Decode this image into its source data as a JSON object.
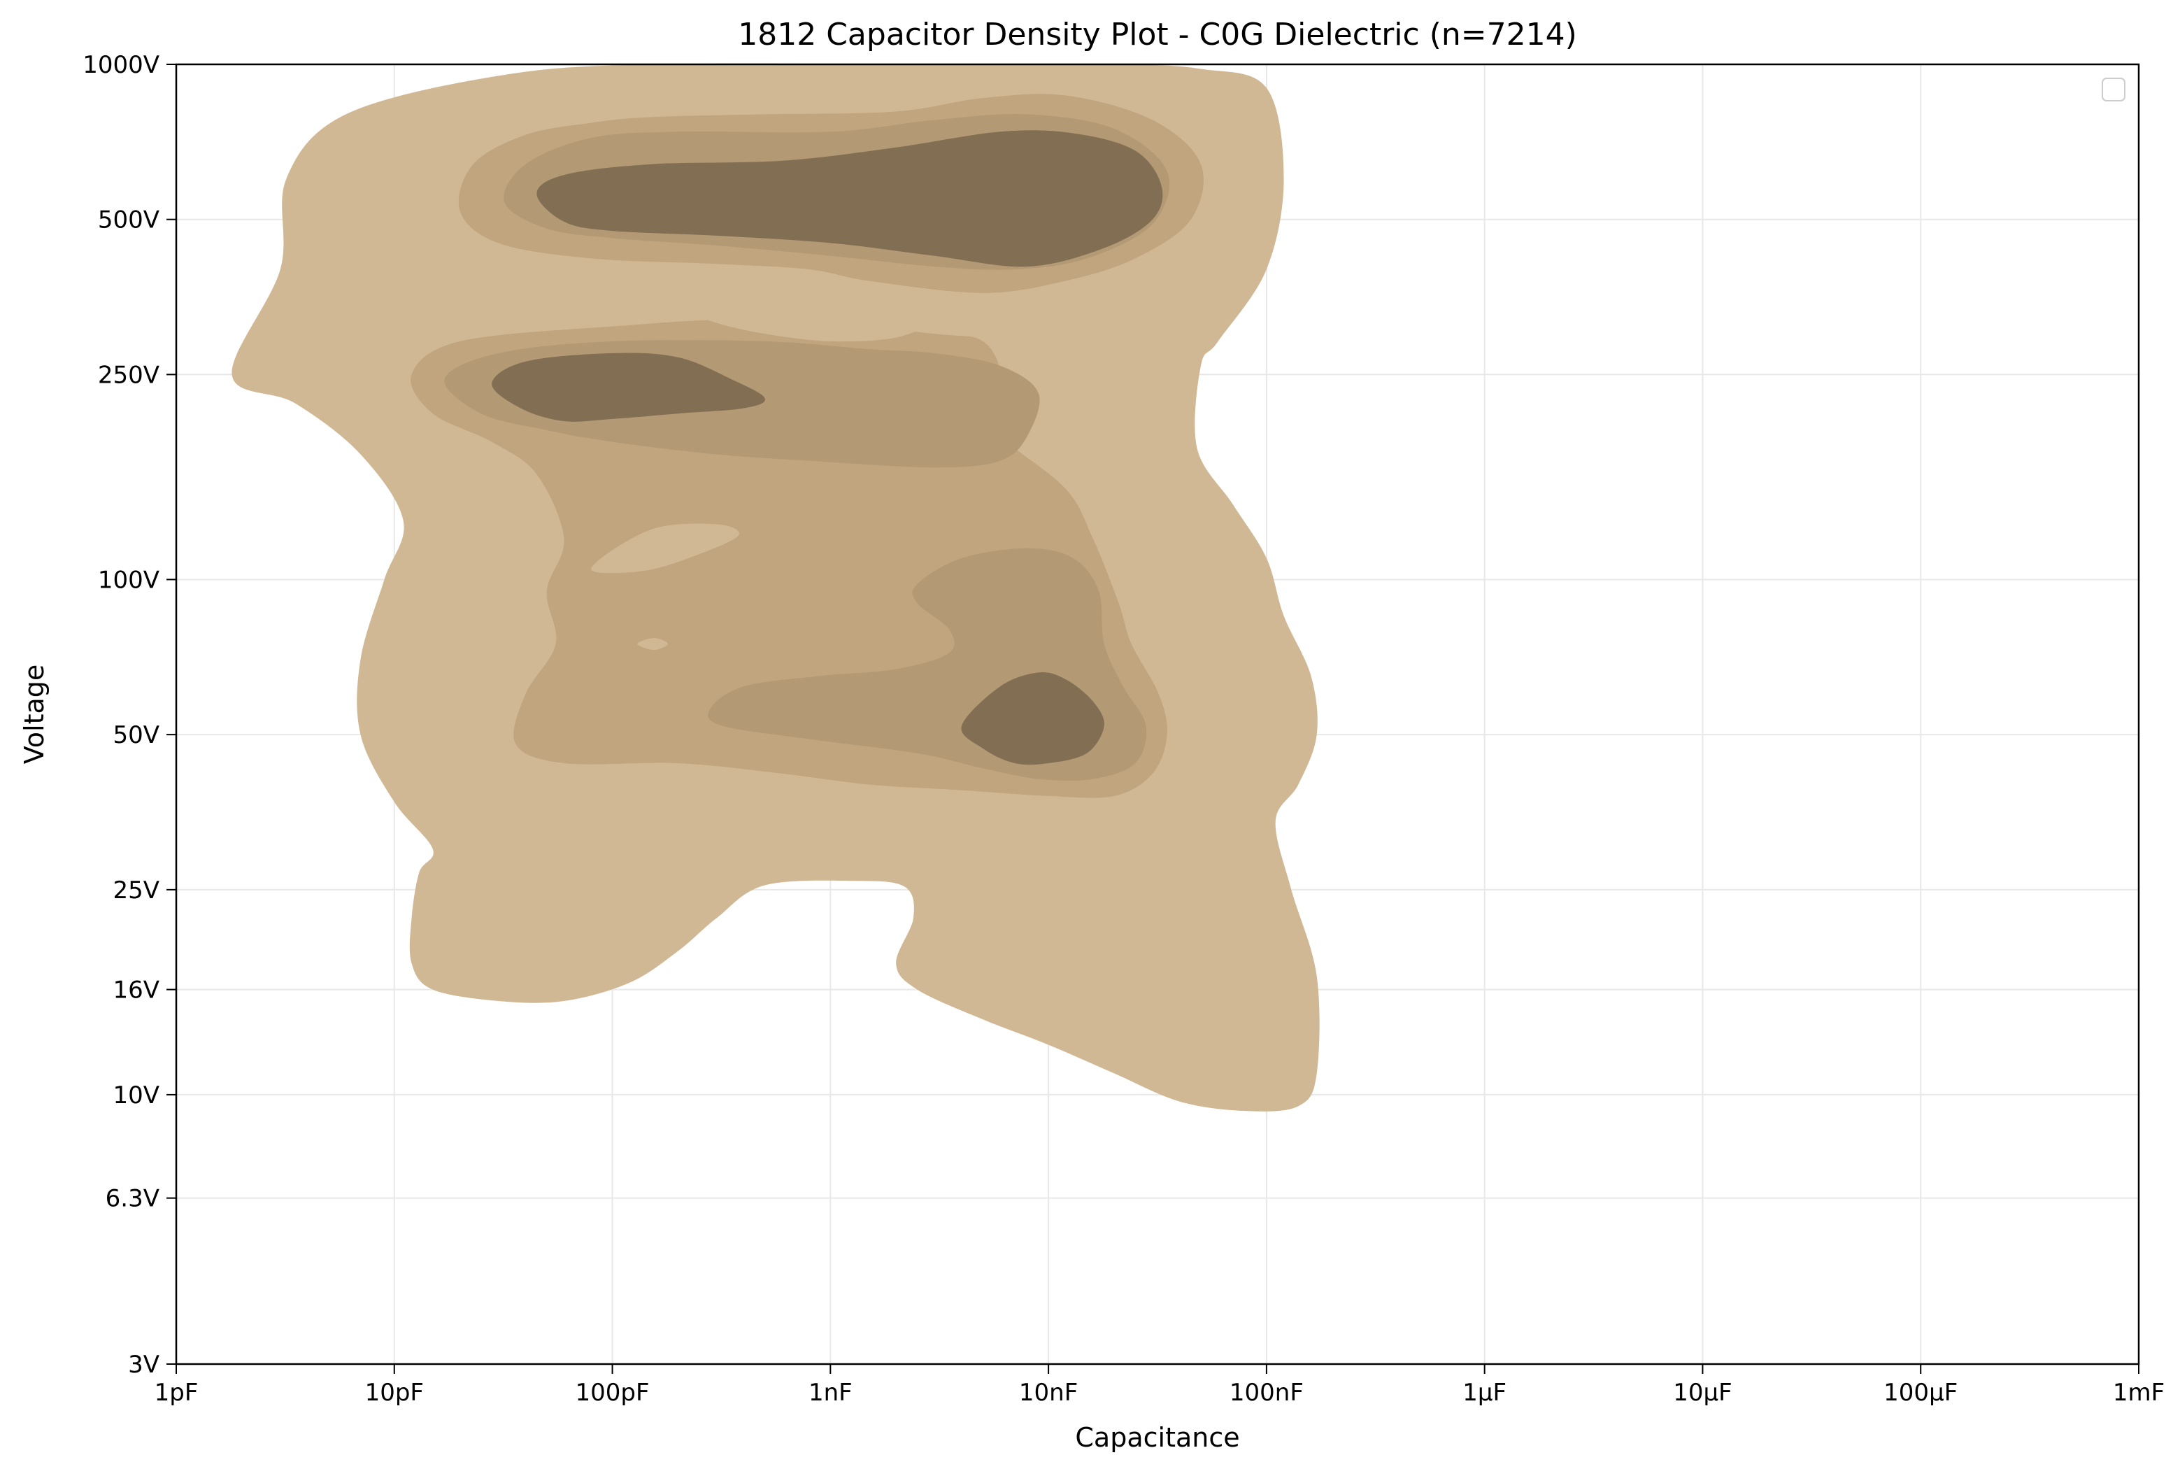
{
  "chart_data": {
    "type": "heatmap",
    "subtype": "kde-density-contour",
    "title": "1812 Capacitor Density Plot - C0G Dielectric (n=7214)",
    "xlabel": "Capacitance",
    "ylabel": "Voltage",
    "x_scale": "log",
    "y_scale": "log",
    "xlim": [
      1e-12,
      0.001
    ],
    "ylim": [
      3,
      1000
    ],
    "x_ticks": [
      {
        "value": 1e-12,
        "label": "1pF"
      },
      {
        "value": 1e-11,
        "label": "10pF"
      },
      {
        "value": 1e-10,
        "label": "100pF"
      },
      {
        "value": 1e-09,
        "label": "1nF"
      },
      {
        "value": 1e-08,
        "label": "10nF"
      },
      {
        "value": 1e-07,
        "label": "100nF"
      },
      {
        "value": 1e-06,
        "label": "1µF"
      },
      {
        "value": 1e-05,
        "label": "10µF"
      },
      {
        "value": 0.0001,
        "label": "100µF"
      },
      {
        "value": 0.001,
        "label": "1mF"
      }
    ],
    "y_ticks": [
      {
        "value": 3,
        "label": "3V"
      },
      {
        "value": 6.3,
        "label": "6.3V"
      },
      {
        "value": 10,
        "label": "10V"
      },
      {
        "value": 16,
        "label": "16V"
      },
      {
        "value": 25,
        "label": "25V"
      },
      {
        "value": 50,
        "label": "50V"
      },
      {
        "value": 100,
        "label": "100V"
      },
      {
        "value": 250,
        "label": "250V"
      },
      {
        "value": 500,
        "label": "500V"
      },
      {
        "value": 1000,
        "label": "1000V"
      }
    ],
    "grid": true,
    "legend": {
      "position": "top-right",
      "entries": []
    },
    "level_colors": [
      "#d1b894",
      "#c0a57f",
      "#b39a75",
      "#826f53"
    ],
    "density_levels": [
      {
        "level": 1,
        "regions": [
          [
            [
              1.8e-12,
              250
            ],
            [
              3e-12,
              400
            ],
            [
              3.2e-12,
              600
            ],
            [
              6e-12,
              800
            ],
            [
              3e-11,
              950
            ],
            [
              1.5e-10,
              1000
            ],
            [
              3.5e-09,
              1000
            ],
            [
              2e-08,
              1000
            ],
            [
              5e-08,
              980
            ],
            [
              1e-07,
              900
            ],
            [
              1.2e-07,
              600
            ],
            [
              1e-07,
              400
            ],
            [
              6e-08,
              290
            ],
            [
              5e-08,
              260
            ],
            [
              4.8e-08,
              180
            ],
            [
              7e-08,
              140
            ],
            [
              1e-07,
              110
            ],
            [
              1.2e-07,
              85
            ],
            [
              1.6e-07,
              65
            ],
            [
              1.7e-07,
              50
            ],
            [
              1.4e-07,
              40
            ],
            [
              1.1e-07,
              34
            ],
            [
              1.3e-07,
              25
            ],
            [
              1.7e-07,
              17
            ],
            [
              1.7e-07,
              11
            ],
            [
              1.4e-07,
              9.5
            ],
            [
              8e-08,
              9.3
            ],
            [
              4e-08,
              9.7
            ],
            [
              2e-08,
              11
            ],
            [
              1e-08,
              12.5
            ],
            [
              5e-09,
              14
            ],
            [
              2.5e-09,
              16
            ],
            [
              2e-09,
              18
            ],
            [
              2.4e-09,
              22
            ],
            [
              2.2e-09,
              25.3
            ],
            [
              1.3e-09,
              26
            ],
            [
              5e-10,
              25.5
            ],
            [
              3e-10,
              22
            ],
            [
              2e-10,
              19
            ],
            [
              1.2e-10,
              16.5
            ],
            [
              6e-11,
              15.2
            ],
            [
              3e-11,
              15.2
            ],
            [
              1.5e-11,
              16
            ],
            [
              1.2e-11,
              18
            ],
            [
              1.2e-11,
              22
            ],
            [
              1.3e-11,
              27
            ],
            [
              1.5e-11,
              30
            ],
            [
              1e-11,
              37
            ],
            [
              7e-12,
              50
            ],
            [
              7e-12,
              70
            ],
            [
              9e-12,
              100
            ],
            [
              1.1e-11,
              130
            ],
            [
              7e-12,
              175
            ],
            [
              3.5e-12,
              220
            ],
            [
              1.8e-12,
              250
            ]
          ]
        ]
      },
      {
        "level": 2,
        "regions": [
          [
            [
              2.3e-11,
              640
            ],
            [
              4e-11,
              730
            ],
            [
              8e-11,
              770
            ],
            [
              1.5e-10,
              790
            ],
            [
              5e-10,
              800
            ],
            [
              2e-09,
              810
            ],
            [
              5e-09,
              860
            ],
            [
              1.2e-08,
              870
            ],
            [
              3e-08,
              780
            ],
            [
              5e-08,
              640
            ],
            [
              4.5e-08,
              500
            ],
            [
              2.5e-08,
              420
            ],
            [
              1.2e-08,
              380
            ],
            [
              5e-09,
              360
            ],
            [
              1.5e-09,
              380
            ],
            [
              8e-10,
              400
            ],
            [
              3e-10,
              410
            ],
            [
              8e-11,
              420
            ],
            [
              3e-11,
              450
            ],
            [
              2e-11,
              520
            ],
            [
              2.3e-11,
              640
            ]
          ],
          [
            [
              1.2e-11,
              250
            ],
            [
              2e-11,
              290
            ],
            [
              1e-10,
              310
            ],
            [
              5e-10,
              320
            ],
            [
              3e-09,
              300
            ],
            [
              5e-09,
              290
            ],
            [
              6e-09,
              250
            ],
            [
              5e-09,
              220
            ],
            [
              6e-09,
              190
            ],
            [
              1.2e-08,
              150
            ],
            [
              1.6e-08,
              120
            ],
            [
              2.1e-08,
              90
            ],
            [
              2.4e-08,
              75
            ],
            [
              3.2e-08,
              60
            ],
            [
              3.5e-08,
              50
            ],
            [
              3e-08,
              42
            ],
            [
              2e-08,
              38
            ],
            [
              1e-08,
              38
            ],
            [
              4e-09,
              39
            ],
            [
              1.5e-09,
              40
            ],
            [
              6e-10,
              42
            ],
            [
              2e-10,
              44
            ],
            [
              6e-11,
              44
            ],
            [
              3.6e-11,
              48
            ],
            [
              4e-11,
              60
            ],
            [
              5.5e-11,
              75
            ],
            [
              5e-11,
              95
            ],
            [
              6e-11,
              120
            ],
            [
              4.5e-11,
              160
            ],
            [
              2.8e-11,
              185
            ],
            [
              1.5e-11,
              210
            ],
            [
              1.2e-11,
              250
            ]
          ]
        ]
      },
      {
        "level": 3,
        "regions": [
          [
            [
              3.2e-11,
              540
            ],
            [
              4e-11,
              640
            ],
            [
              8e-11,
              720
            ],
            [
              2e-10,
              740
            ],
            [
              1e-09,
              740
            ],
            [
              3e-09,
              780
            ],
            [
              8e-09,
              800
            ],
            [
              2e-08,
              750
            ],
            [
              3.5e-08,
              620
            ],
            [
              3e-08,
              490
            ],
            [
              1.5e-08,
              420
            ],
            [
              7e-09,
              400
            ],
            [
              3e-09,
              405
            ],
            [
              1e-09,
              425
            ],
            [
              3e-10,
              445
            ],
            [
              1e-10,
              460
            ],
            [
              5e-11,
              480
            ],
            [
              3.2e-11,
              540
            ]
          ],
          [
            [
              1.7e-11,
              245
            ],
            [
              3e-11,
              275
            ],
            [
              1e-10,
              290
            ],
            [
              5e-10,
              290
            ],
            [
              1.5e-09,
              280
            ],
            [
              3e-09,
              275
            ],
            [
              6e-09,
              260
            ],
            [
              9e-09,
              230
            ],
            [
              8e-09,
              190
            ],
            [
              6e-09,
              170
            ],
            [
              3e-09,
              165
            ],
            [
              8e-10,
              170
            ],
            [
              3e-10,
              175
            ],
            [
              1e-10,
              185
            ],
            [
              5e-11,
              195
            ],
            [
              2.5e-11,
              210
            ],
            [
              1.7e-11,
              245
            ]
          ],
          [
            [
              2.5e-09,
              98
            ],
            [
              4e-09,
              110
            ],
            [
              8e-09,
              115
            ],
            [
              1.3e-08,
              110
            ],
            [
              1.7e-08,
              95
            ],
            [
              1.8e-08,
              75
            ],
            [
              2.2e-08,
              62
            ],
            [
              2.8e-08,
              52
            ],
            [
              2.5e-08,
              44
            ],
            [
              1.6e-08,
              41
            ],
            [
              9e-09,
              41
            ],
            [
              5e-09,
              43
            ],
            [
              2.5e-09,
              46
            ],
            [
              8e-10,
              49
            ],
            [
              3.2e-10,
              52
            ],
            [
              2.8e-10,
              56
            ],
            [
              4e-10,
              62
            ],
            [
              9e-10,
              65
            ],
            [
              2e-09,
              67
            ],
            [
              3.5e-09,
              72
            ],
            [
              3.5e-09,
              80
            ],
            [
              2.5e-09,
              90
            ],
            [
              2.5e-09,
              98
            ]
          ]
        ]
      },
      {
        "level": 4,
        "regions": [
          [
            [
              4.5e-11,
              560
            ],
            [
              6e-11,
              610
            ],
            [
              1.5e-10,
              640
            ],
            [
              6e-10,
              650
            ],
            [
              2e-09,
              690
            ],
            [
              6e-09,
              740
            ],
            [
              1.3e-08,
              735
            ],
            [
              2.5e-08,
              680
            ],
            [
              3.3e-08,
              580
            ],
            [
              3e-08,
              500
            ],
            [
              1.8e-08,
              440
            ],
            [
              8e-09,
              405
            ],
            [
              3e-09,
              425
            ],
            [
              1e-09,
              450
            ],
            [
              3e-10,
              465
            ],
            [
              1e-10,
              475
            ],
            [
              6e-11,
              495
            ],
            [
              4.5e-11,
              560
            ]
          ],
          [
            [
              2.8e-11,
              240
            ],
            [
              4e-11,
              265
            ],
            [
              1e-10,
              275
            ],
            [
              2e-10,
              270
            ],
            [
              3.5e-10,
              245
            ],
            [
              5e-10,
              225
            ],
            [
              4e-10,
              215
            ],
            [
              2e-10,
              210
            ],
            [
              1e-10,
              205
            ],
            [
              6e-11,
              203
            ],
            [
              3.8e-11,
              215
            ],
            [
              2.8e-11,
              240
            ]
          ],
          [
            [
              4e-09,
              52
            ],
            [
              6e-09,
              62
            ],
            [
              9e-09,
              66
            ],
            [
              1.2e-08,
              64
            ],
            [
              1.6e-08,
              58
            ],
            [
              1.8e-08,
              52
            ],
            [
              1.5e-08,
              46
            ],
            [
              1e-08,
              44
            ],
            [
              7e-09,
              44
            ],
            [
              5e-09,
              47
            ],
            [
              4e-09,
              52
            ]
          ]
        ]
      }
    ],
    "low_density_holes": [
      [
        [
          2.5e-10,
          330
        ],
        [
          4e-10,
          350
        ],
        [
          9e-10,
          355
        ],
        [
          2e-09,
          340
        ],
        [
          3e-09,
          320
        ],
        [
          2e-09,
          295
        ],
        [
          1e-09,
          290
        ],
        [
          5e-10,
          300
        ],
        [
          3e-10,
          315
        ],
        [
          2.5e-10,
          330
        ]
      ],
      [
        [
          8e-11,
          105
        ],
        [
          1.5e-10,
          125
        ],
        [
          3e-10,
          128
        ],
        [
          3.8e-10,
          122
        ],
        [
          2.5e-10,
          112
        ],
        [
          1.4e-10,
          104
        ],
        [
          8e-11,
          105
        ]
      ],
      [
        [
          1.55e-10,
          77
        ],
        [
          1.3e-10,
          75
        ],
        [
          1.55e-10,
          73
        ],
        [
          1.8e-10,
          75
        ],
        [
          1.55e-10,
          77
        ]
      ]
    ]
  }
}
